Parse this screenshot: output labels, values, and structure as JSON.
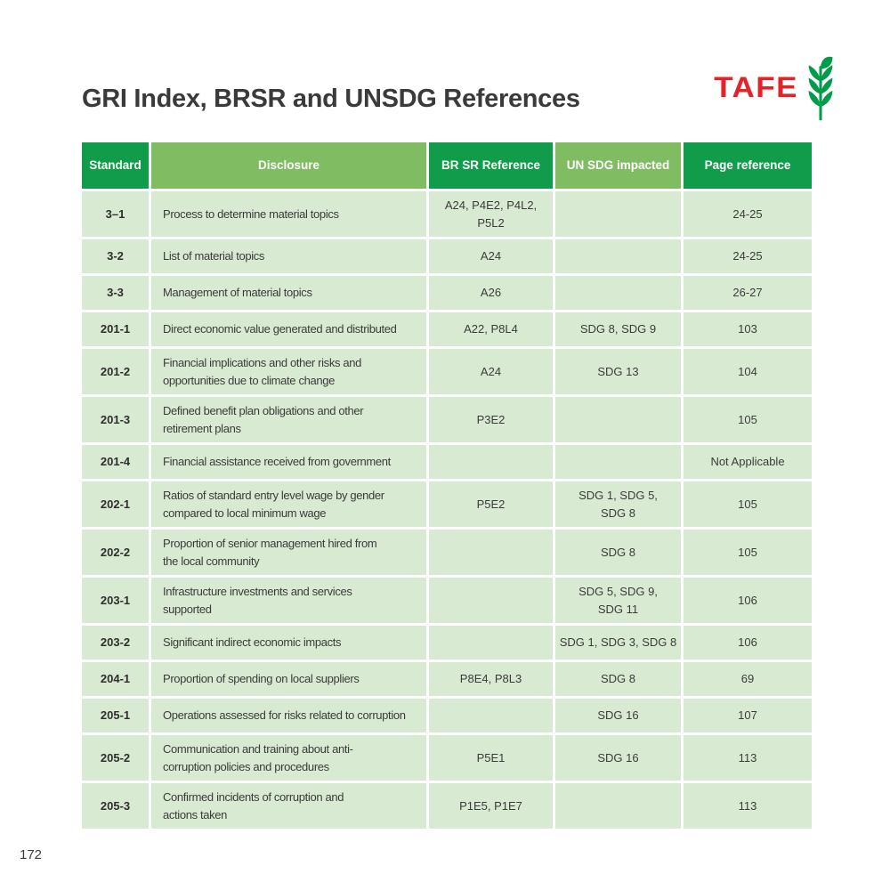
{
  "header": {
    "title": "GRI Index, BRSR and UNSDG References"
  },
  "logo": {
    "text": "TAFE",
    "icon": "wheat-icon",
    "text_color": "#e1232a",
    "icon_color": "#009c4a"
  },
  "colors": {
    "header_dark_green": "#109c4b",
    "header_medium_green": "#80bc62",
    "row_bg": "#d9ead2",
    "header_text": "#ffffff",
    "body_text": "#3b3b3a"
  },
  "table": {
    "columns": [
      {
        "key": "standard",
        "label": "Standard",
        "style": "dark"
      },
      {
        "key": "disclosure",
        "label": "Disclosure",
        "style": "medium"
      },
      {
        "key": "brsr",
        "label": "BR SR Reference",
        "style": "dark"
      },
      {
        "key": "unsdg",
        "label": "UN SDG impacted",
        "style": "medium"
      },
      {
        "key": "page",
        "label": "Page reference",
        "style": "dark"
      }
    ],
    "rows": [
      {
        "standard": "3–1",
        "disclosure": "Process to determine material topics",
        "brsr": "A24, P4E2, P4L2, P5L2",
        "unsdg": "",
        "page": "24-25"
      },
      {
        "standard": "3-2",
        "disclosure": "List of material topics",
        "brsr": "A24",
        "unsdg": "",
        "page": "24-25"
      },
      {
        "standard": "3-3",
        "disclosure": "Management of material topics",
        "brsr": "A26",
        "unsdg": "",
        "page": "26-27"
      },
      {
        "standard": "201-1",
        "disclosure": "Direct economic value generated and distributed",
        "brsr": "A22, P8L4",
        "unsdg": "SDG 8, SDG 9",
        "page": "103"
      },
      {
        "standard": "201-2",
        "disclosure": "Financial implications and other risks and\nopportunities due to climate change",
        "brsr": "A24",
        "unsdg": "SDG 13",
        "page": "104"
      },
      {
        "standard": "201-3",
        "disclosure": "Defined benefit plan obligations and other\nretirement plans",
        "brsr": "P3E2",
        "unsdg": "",
        "page": "105"
      },
      {
        "standard": "201-4",
        "disclosure": "Financial assistance received from government",
        "brsr": "",
        "unsdg": "",
        "page": "Not Applicable"
      },
      {
        "standard": "202-1",
        "disclosure": "Ratios of standard entry level wage by gender\ncompared to local minimum wage",
        "brsr": "P5E2",
        "unsdg": "SDG 1, SDG 5,\nSDG 8",
        "page": "105"
      },
      {
        "standard": "202-2",
        "disclosure": "Proportion of senior management hired from\nthe local community",
        "brsr": "",
        "unsdg": "SDG 8",
        "page": "105"
      },
      {
        "standard": "203-1",
        "disclosure": "Infrastructure investments and services\nsupported",
        "brsr": "",
        "unsdg": "SDG 5, SDG 9,\nSDG 11",
        "page": "106"
      },
      {
        "standard": "203-2",
        "disclosure": "Significant indirect economic impacts",
        "brsr": "",
        "unsdg": "SDG 1, SDG 3, SDG 8",
        "page": "106"
      },
      {
        "standard": "204-1",
        "disclosure": "Proportion of spending on local suppliers",
        "brsr": "P8E4, P8L3",
        "unsdg": "SDG 8",
        "page": "69"
      },
      {
        "standard": "205-1",
        "disclosure": "Operations assessed for risks related to corruption",
        "brsr": "",
        "unsdg": "SDG 16",
        "page": "107"
      },
      {
        "standard": "205-2",
        "disclosure": "Communication and training about anti-\ncorruption policies and procedures",
        "brsr": "P5E1",
        "unsdg": "SDG 16",
        "page": "113"
      },
      {
        "standard": "205-3",
        "disclosure": "Confirmed incidents of corruption and\nactions taken",
        "brsr": "P1E5, P1E7",
        "unsdg": "",
        "page": "113"
      }
    ]
  },
  "page": {
    "number": "172"
  }
}
